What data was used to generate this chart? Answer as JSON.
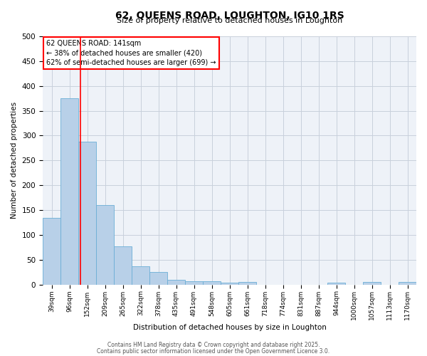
{
  "title": "62, QUEENS ROAD, LOUGHTON, IG10 1RS",
  "subtitle": "Size of property relative to detached houses in Loughton",
  "xlabel": "Distribution of detached houses by size in Loughton",
  "ylabel": "Number of detached properties",
  "bar_color": "#b8d0e8",
  "bar_edge_color": "#6baed6",
  "background_color": "#eef2f8",
  "grid_color": "#c8d0dc",
  "categories": [
    "39sqm",
    "96sqm",
    "152sqm",
    "209sqm",
    "265sqm",
    "322sqm",
    "378sqm",
    "435sqm",
    "491sqm",
    "548sqm",
    "605sqm",
    "661sqm",
    "718sqm",
    "774sqm",
    "831sqm",
    "887sqm",
    "944sqm",
    "1000sqm",
    "1057sqm",
    "1113sqm",
    "1170sqm"
  ],
  "values": [
    135,
    375,
    288,
    160,
    77,
    37,
    26,
    10,
    7,
    7,
    4,
    5,
    0,
    0,
    0,
    0,
    4,
    0,
    5,
    0,
    5
  ],
  "red_line_x": 1.62,
  "annotation_line1": "62 QUEENS ROAD: 141sqm",
  "annotation_line2": "← 38% of detached houses are smaller (420)",
  "annotation_line3": "62% of semi-detached houses are larger (699) →",
  "ylim": [
    0,
    500
  ],
  "yticks": [
    0,
    50,
    100,
    150,
    200,
    250,
    300,
    350,
    400,
    450,
    500
  ],
  "footer1": "Contains HM Land Registry data © Crown copyright and database right 2025.",
  "footer2": "Contains public sector information licensed under the Open Government Licence 3.0."
}
